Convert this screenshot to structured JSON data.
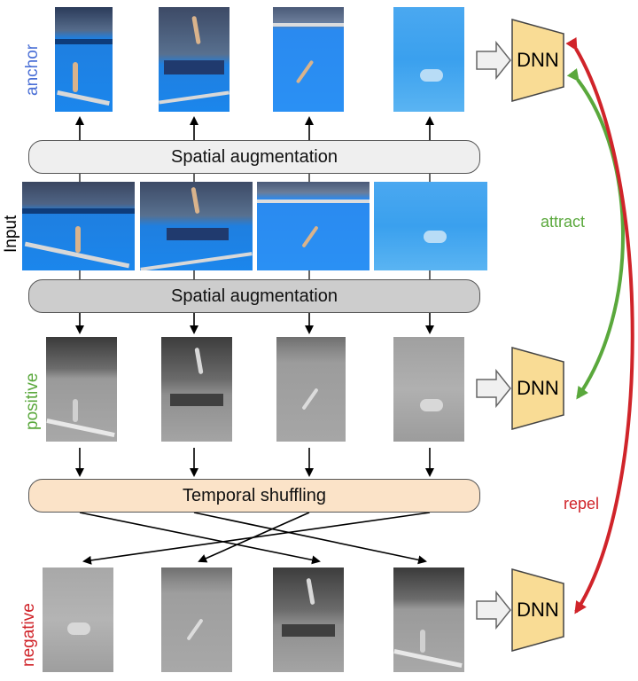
{
  "labels": {
    "anchor": "anchor",
    "input": "Input",
    "positive": "positive",
    "negative": "negative"
  },
  "blocks": {
    "spatial_top": "Spatial augmentation",
    "spatial_bottom": "Spatial augmentation",
    "temporal": "Temporal shuffling"
  },
  "dnn": {
    "anchor": "DNN",
    "positive": "DNN",
    "negative": "DNN"
  },
  "relations": {
    "attract": "attract",
    "repel": "repel"
  },
  "colors": {
    "anchor": "#4a6fd6",
    "positive": "#5aa83c",
    "negative": "#d0242a",
    "attract": "#5aa83c",
    "repel": "#d0242a",
    "dnn_fill": "#f9dc95",
    "spatial_top_fill": "#efefef",
    "spatial_bottom_fill": "#cdcdcd",
    "temporal_fill": "#fbe3c8"
  }
}
